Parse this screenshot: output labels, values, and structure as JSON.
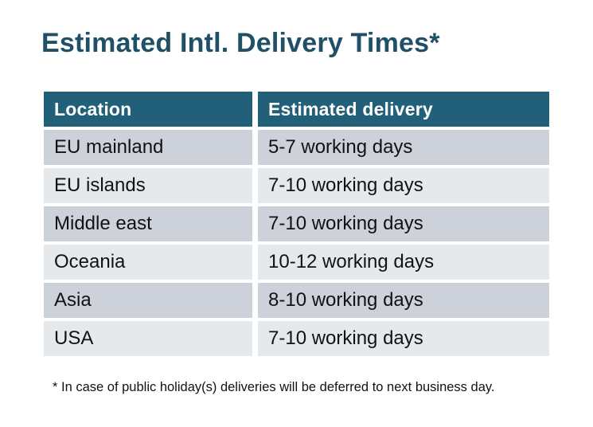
{
  "title": "Estimated Intl. Delivery Times*",
  "footnote": "* In case of public holiday(s) deliveries will be deferred to next business day.",
  "chart_data": {
    "type": "table",
    "title": "Estimated Intl. Delivery Times*",
    "columns": [
      "Location",
      "Estimated delivery"
    ],
    "rows": [
      [
        "EU mainland",
        "5-7 working days"
      ],
      [
        "EU islands",
        "7-10 working days"
      ],
      [
        "Middle east",
        "7-10 working days"
      ],
      [
        "Oceania",
        "10-12 working days"
      ],
      [
        "Asia",
        "8-10 working days"
      ],
      [
        "USA",
        "7-10 working days"
      ]
    ],
    "annotation": "* In case of public holiday(s) deliveries will be deferred to next business day."
  },
  "colors": {
    "header_bg": "#226079",
    "header_text": "#FFFFFF",
    "row_dark": "#CDD1D9",
    "row_light": "#E6E9EB",
    "title_text": "#1F5067",
    "body_text": "#121212",
    "background": "#FFFFFF"
  }
}
